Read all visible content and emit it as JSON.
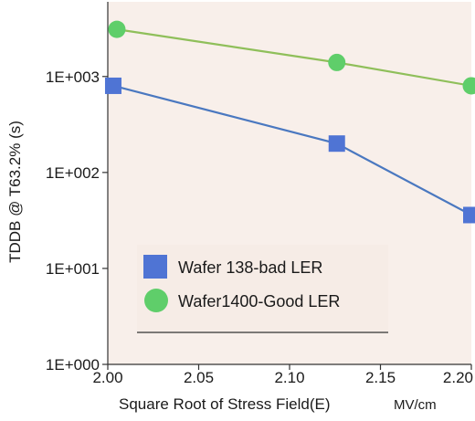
{
  "chart_data": {
    "type": "scatter",
    "xlabel": "Square Root of Stress Field(E)",
    "xunit": "MV/cm",
    "ylabel": "TDDB @ T63.2% (s)",
    "xlim": [
      2.0,
      2.2
    ],
    "ylim": [
      1,
      6000
    ],
    "yscale": "log",
    "x_ticks": [
      2.0,
      2.05,
      2.1,
      2.15,
      2.2
    ],
    "x_tick_labels": [
      "2.00",
      "2.05",
      "2.10",
      "2.15",
      "2.20"
    ],
    "y_ticks": [
      1,
      10,
      100,
      1000
    ],
    "y_tick_labels": [
      "1E+000",
      "1E+001",
      "1E+002",
      "1E+003"
    ],
    "grid": false,
    "legend_position": "bottom-center",
    "series": [
      {
        "name": "Wafer 138-bad LER",
        "marker": "square",
        "color": "#4f74d4",
        "line_color": "#4a78c0",
        "x": [
          2.003,
          2.126,
          2.2
        ],
        "y": [
          800,
          200,
          36
        ]
      },
      {
        "name": "Wafer1400-Good LER",
        "marker": "circle",
        "color": "#5fce6a",
        "line_color": "#8fbf5a",
        "x": [
          2.005,
          2.126,
          2.2
        ],
        "y": [
          3100,
          1400,
          800
        ]
      }
    ]
  }
}
